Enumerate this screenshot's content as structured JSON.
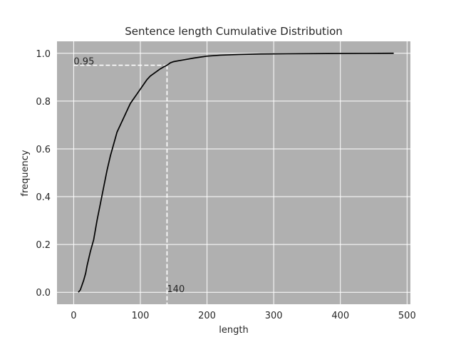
{
  "chart_data": {
    "type": "line",
    "title": "Sentence length Cumulative Distribution",
    "xlabel": "length",
    "ylabel": "frequency",
    "xlim": [
      -25,
      505
    ],
    "ylim": [
      -0.05,
      1.05
    ],
    "xticks": [
      0,
      100,
      200,
      300,
      400,
      500
    ],
    "yticks": [
      0.0,
      0.2,
      0.4,
      0.6,
      0.8,
      1.0
    ],
    "xtick_labels": [
      "0",
      "100",
      "200",
      "300",
      "400",
      "500"
    ],
    "ytick_labels": [
      "0.0",
      "0.2",
      "0.4",
      "0.6",
      "0.8",
      "1.0"
    ],
    "grid": true,
    "background_color": "#b0b0b0",
    "grid_color": "#ffffff",
    "line_color": "#000000",
    "guide_color": "#ffffff",
    "series": [
      {
        "x": [
          7,
          10,
          15,
          18,
          20,
          25,
          30,
          35,
          40,
          45,
          50,
          55,
          60,
          65,
          70,
          75,
          80,
          85,
          90,
          95,
          100,
          105,
          110,
          115,
          120,
          125,
          130,
          135,
          140,
          145,
          150,
          160,
          170,
          180,
          190,
          200,
          220,
          250,
          280,
          320,
          380,
          440,
          480
        ],
        "y": [
          0.0,
          0.01,
          0.05,
          0.08,
          0.11,
          0.17,
          0.22,
          0.3,
          0.37,
          0.44,
          0.51,
          0.57,
          0.62,
          0.67,
          0.7,
          0.73,
          0.76,
          0.79,
          0.81,
          0.83,
          0.85,
          0.87,
          0.89,
          0.905,
          0.915,
          0.925,
          0.935,
          0.943,
          0.95,
          0.96,
          0.965,
          0.97,
          0.975,
          0.98,
          0.984,
          0.988,
          0.992,
          0.995,
          0.997,
          0.998,
          0.999,
          0.9995,
          1.0
        ]
      }
    ],
    "annotations": [
      {
        "text": "0.95",
        "x": 0,
        "y": 0.95
      },
      {
        "text": "140",
        "x": 140,
        "y": 0.0
      }
    ],
    "guides": {
      "x": 140,
      "y": 0.95
    }
  }
}
